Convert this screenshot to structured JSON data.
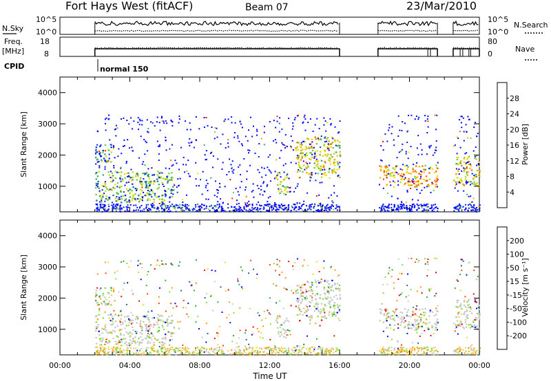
{
  "header": {
    "station": "Fort Hays West (fitACF)",
    "beam": "Beam 07",
    "date": "23/Mar/2010"
  },
  "left_labels": {
    "nsky": "N.Sky",
    "freq_line1": "Freq.",
    "freq_line2": "[MHz]",
    "cpid": "CPID"
  },
  "right_labels": {
    "nsearch": "N.Search",
    "nave": "Nave"
  },
  "noise_axis": {
    "top": "10^5",
    "bottom": "10^0"
  },
  "freq_axis": {
    "top": "18",
    "bottom": "8"
  },
  "nave_axis": {
    "top": "80",
    "bottom": "0"
  },
  "cpid_text": "normal 150",
  "power_panel": {
    "ylabel": "Slant Range [km]",
    "colorbar_label": "Power [dB]",
    "colorbar_ticks": [
      "28",
      "24",
      "20",
      "16",
      "12",
      "8",
      "4"
    ]
  },
  "velocity_panel": {
    "ylabel": "Slant Range [km]",
    "colorbar_label": "Velocity [m s⁻¹]",
    "colorbar_ticks": [
      "200",
      "100",
      "50",
      "15",
      "-15",
      "-50",
      "-100",
      "-200"
    ]
  },
  "chart_data": [
    {
      "type": "heatmap",
      "title": "Power",
      "xlabel": "Time UT",
      "ylabel": "Slant Range [km]",
      "x_ticks": [
        "00:00",
        "04:00",
        "08:00",
        "12:00",
        "16:00",
        "20:00",
        "00:00"
      ],
      "y_ticks": [
        "1000",
        "2000",
        "3000",
        "4000"
      ],
      "xlim_hours": [
        0,
        24
      ],
      "ylim_km": [
        180,
        4500
      ],
      "data_gaps_hours": [
        [
          16.0,
          18.2
        ],
        [
          21.6,
          22.5
        ]
      ],
      "scatter_regions": [
        {
          "t_start": 2.0,
          "t_end": 6.5,
          "r_start": 500,
          "r_end": 1500,
          "power_db": 12
        },
        {
          "t_start": 2.0,
          "t_end": 3.0,
          "r_start": 1800,
          "r_end": 2400,
          "power_db": 10
        },
        {
          "t_start": 12.3,
          "t_end": 13.0,
          "r_start": 700,
          "r_end": 1500,
          "power_db": 14
        },
        {
          "t_start": 13.4,
          "t_end": 16.0,
          "r_start": 1300,
          "r_end": 2600,
          "power_db": 18
        },
        {
          "t_start": 18.2,
          "t_end": 21.6,
          "r_start": 1000,
          "r_end": 1700,
          "power_db": 20
        },
        {
          "t_start": 22.5,
          "t_end": 24.0,
          "r_start": 1000,
          "r_end": 2000,
          "power_db": 18
        }
      ],
      "colorbar": {
        "label": "Power [dB]",
        "range": [
          0,
          32
        ]
      }
    },
    {
      "type": "heatmap",
      "title": "Velocity",
      "xlabel": "Time UT",
      "ylabel": "Slant Range [km]",
      "x_ticks": [
        "00:00",
        "04:00",
        "08:00",
        "12:00",
        "16:00",
        "20:00",
        "00:00"
      ],
      "y_ticks": [
        "1000",
        "2000",
        "3000",
        "4000"
      ],
      "xlim_hours": [
        0,
        24
      ],
      "ylim_km": [
        180,
        4500
      ],
      "colorbar": {
        "label": "Velocity [m s⁻¹]",
        "range": [
          -250,
          250
        ]
      }
    }
  ],
  "colors": {
    "power_scale": [
      "#0000ff",
      "#0033cc",
      "#2266aa",
      "#33aa66",
      "#77cc33",
      "#bbdd00",
      "#ffd400",
      "#ffaa00",
      "#ff6600",
      "#ff2200",
      "#e80000"
    ],
    "velocity_scale": [
      "#e80000",
      "#ff4400",
      "#ff9900",
      "#ffcc33",
      "#c8c8c8",
      "#88dd33",
      "#33aa33",
      "#226688",
      "#0000ff"
    ]
  }
}
